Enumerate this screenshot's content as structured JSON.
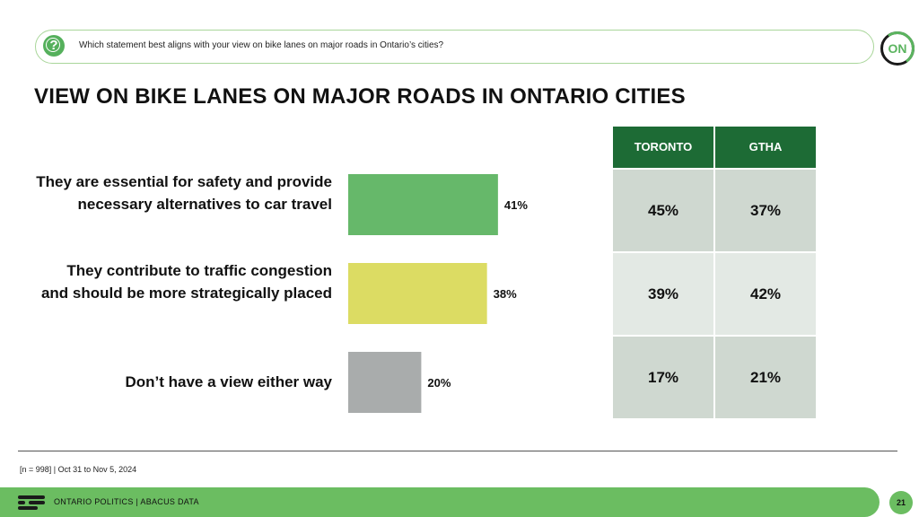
{
  "question": "Which statement best aligns with your view on bike lanes on major roads in Ontario’s cities?",
  "logo_text": "ON",
  "chart_data": {
    "type": "bar",
    "orientation": "horizontal",
    "title": "VIEW ON BIKE LANES ON MAJOR ROADS IN ONTARIO CITIES",
    "categories": [
      "They are essential for safety and provide necessary alternatives to car travel",
      "They contribute to traffic congestion and should be more strategically placed",
      "Don’t have a view either way"
    ],
    "values": [
      41,
      38,
      20
    ],
    "value_labels": [
      "41%",
      "38%",
      "20%"
    ],
    "colors": [
      "#66b86a",
      "#dcdc63",
      "#a9acac"
    ],
    "xlim": [
      0,
      100
    ],
    "table": {
      "headers": [
        "TORONTO",
        "GTHA"
      ],
      "rows": [
        [
          "45%",
          "37%"
        ],
        [
          "39%",
          "42%"
        ],
        [
          "17%",
          "21%"
        ]
      ]
    }
  },
  "sample_note": "[n = 998] | Oct 31 to Nov 5, 2024",
  "footer_text": "ONTARIO POLITICS  |  ABACUS DATA",
  "page_number": "21"
}
